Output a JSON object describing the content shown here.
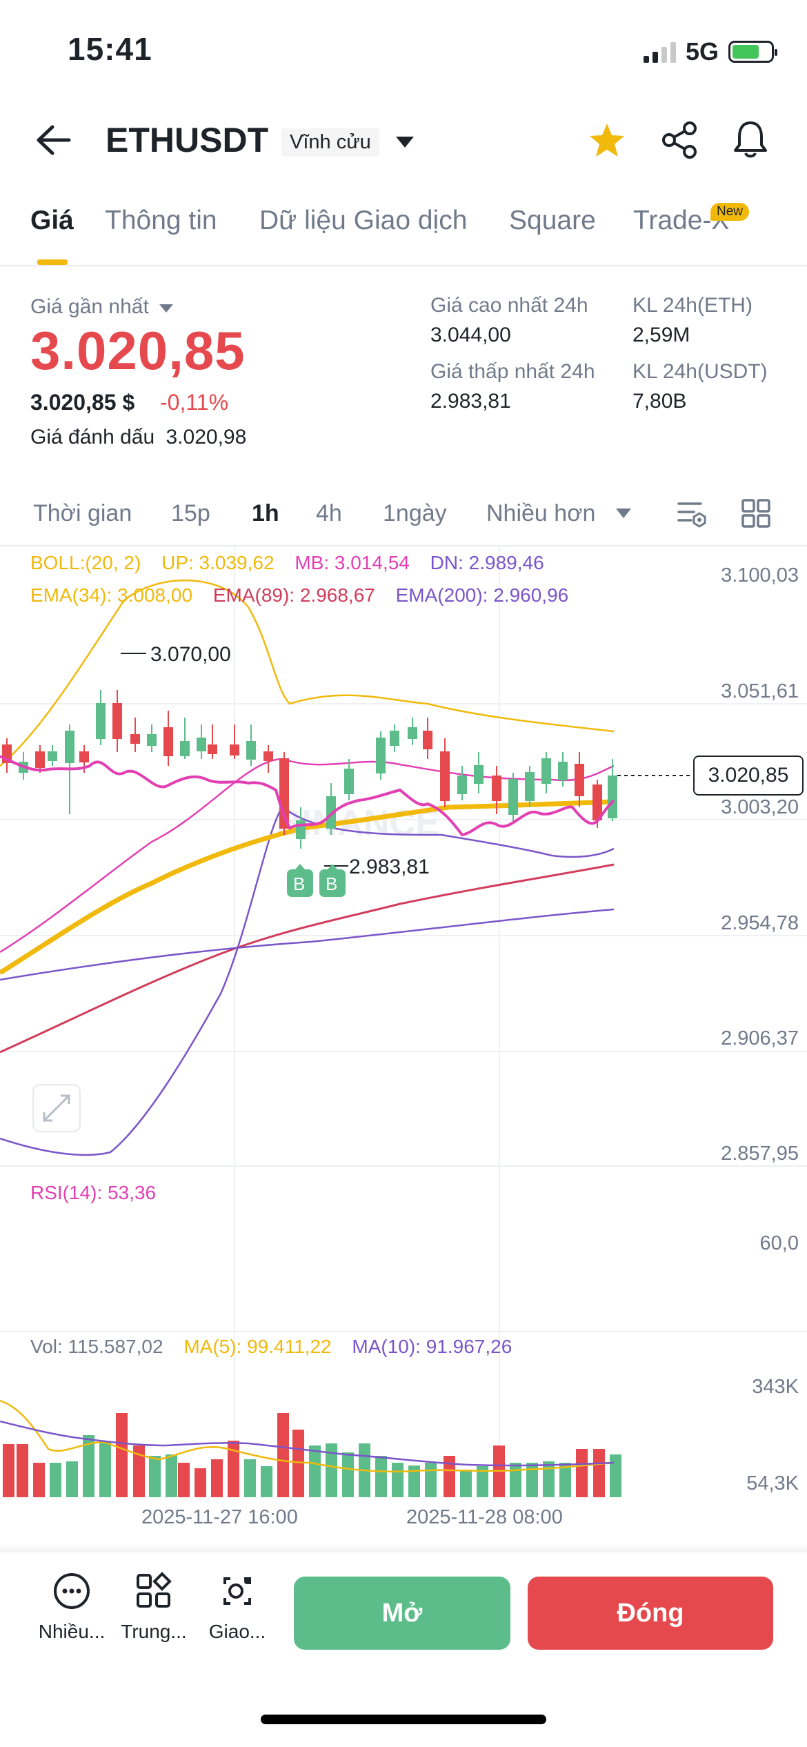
{
  "status": {
    "time": "15:41",
    "network": "5G"
  },
  "header": {
    "title": "ETHUSDT",
    "badge": "Vĩnh cửu"
  },
  "tabs": [
    {
      "label": "Giá"
    },
    {
      "label": "Thông tin"
    },
    {
      "label": "Dữ liệu Giao dịch"
    },
    {
      "label": "Square"
    },
    {
      "label": "Trade-X"
    }
  ],
  "tab_new_badge": "New",
  "ticker": {
    "last_label": "Giá gần nhất",
    "last_price": "3.020,85",
    "usd_price": "3.020,85 $",
    "change": "-0,11%",
    "mark_label": "Giá đánh dấu",
    "mark_price": "3.020,98",
    "high_label": "Giá cao nhất 24h",
    "high": "3.044,00",
    "low_label": "Giá thấp nhất 24h",
    "low": "2.983,81",
    "vol_eth_label": "KL 24h(ETH)",
    "vol_eth": "2,59M",
    "vol_usdt_label": "KL 24h(USDT)",
    "vol_usdt": "7,80B"
  },
  "intervals": [
    {
      "label": "Thời gian"
    },
    {
      "label": "15p"
    },
    {
      "label": "1h"
    },
    {
      "label": "4h"
    },
    {
      "label": "1ngày"
    },
    {
      "label": "Nhiều hơn"
    }
  ],
  "indicators": {
    "boll": "BOLL:(20, 2)",
    "up": "UP: 3.039,62",
    "mb": "MB: 3.014,54",
    "dn": "DN: 2.989,46",
    "ema34": "EMA(34): 3.008,00",
    "ema89": "EMA(89): 2.968,67",
    "ema200": "EMA(200): 2.960,96",
    "rsi": "RSI(14): 53,36",
    "vol": "Vol: 115.587,02",
    "ma5": "MA(5): 99.411,22",
    "ma10": "MA(10): 91.967,26"
  },
  "chart_labels": {
    "high_marker": "3.070,00",
    "low_marker": "2.983,81",
    "current_price": "3.020,85",
    "buy_marker": "B",
    "watermark": "BINANCE"
  },
  "axis": {
    "price_ticks": [
      "3.100,03",
      "3.051,61",
      "3.003,20",
      "2.954,78",
      "2.906,37",
      "2.857,95"
    ],
    "rsi_ticks": [
      "60,0"
    ],
    "vol_ticks": [
      "343K",
      "54,3K"
    ],
    "time_ticks": [
      "2025-11-27 16:00",
      "2025-11-28 08:00"
    ]
  },
  "bottom": {
    "more": "Nhiều...",
    "center": "Trung...",
    "trade": "Giao...",
    "open": "Mở",
    "close": "Đóng"
  },
  "colors": {
    "up": "#5cbd8a",
    "down": "#e5484d",
    "accent": "#f0b90b"
  }
}
